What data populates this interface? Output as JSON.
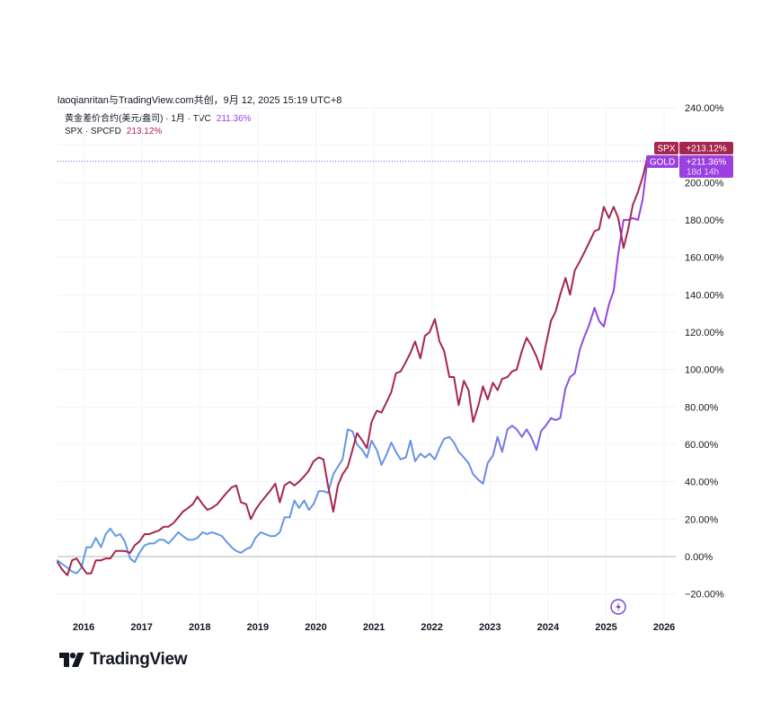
{
  "attribution": "laoqianritan与TradingView.com共创，9月 12, 2025 15:19 UTC+8",
  "legend": [
    {
      "name": "黄金差价合约(美元/盎司) · 1月 · TVC",
      "value": "211.36%",
      "color": "#9c3fe0"
    },
    {
      "name": "SPX · SPCFD",
      "value": "213.12%",
      "color": "#b5195c"
    }
  ],
  "badges": {
    "spx": {
      "label": "SPX",
      "value": "+213.12%",
      "color": "#a5274f"
    },
    "gold": {
      "label": "GOLD",
      "value": "+211.36%",
      "countdown": "18d 14h",
      "color": "#9c3fe0"
    }
  },
  "brand": "TradingView",
  "chart_data": {
    "type": "line",
    "title": "",
    "xlabel": "",
    "ylabel": "",
    "y_unit": "%",
    "ylim": [
      -27,
      240
    ],
    "xlim": [
      2015.55,
      2026.2
    ],
    "y_ticks": [
      240,
      200,
      180,
      160,
      140,
      120,
      100,
      80,
      60,
      40,
      20,
      0,
      -20
    ],
    "y_tick_labels": [
      "240.00%",
      "200.00%",
      "180.00%",
      "160.00%",
      "140.00%",
      "120.00%",
      "100.00%",
      "80.00%",
      "60.00%",
      "40.00%",
      "20.00%",
      "0.00%",
      "−20.00%"
    ],
    "x_ticks": [
      2016,
      2017,
      2018,
      2019,
      2020,
      2021,
      2022,
      2023,
      2024,
      2025,
      2026
    ],
    "x_tick_labels": [
      "2016",
      "2017",
      "2018",
      "2019",
      "2020",
      "2021",
      "2022",
      "2023",
      "2024",
      "2025",
      "2026"
    ],
    "reference_line": 211.36,
    "series": [
      {
        "name": "GOLD",
        "color_start": "#5b9fe8",
        "color_end": "#9c3fe0",
        "points": [
          [
            2015.55,
            -2
          ],
          [
            2015.63,
            -4
          ],
          [
            2015.72,
            -6
          ],
          [
            2015.8,
            -8
          ],
          [
            2015.88,
            -9
          ],
          [
            2015.96,
            -6
          ],
          [
            2016.05,
            5
          ],
          [
            2016.13,
            5
          ],
          [
            2016.21,
            10
          ],
          [
            2016.3,
            5
          ],
          [
            2016.38,
            12
          ],
          [
            2016.46,
            15
          ],
          [
            2016.55,
            11
          ],
          [
            2016.63,
            12
          ],
          [
            2016.71,
            8
          ],
          [
            2016.8,
            -1
          ],
          [
            2016.88,
            -3
          ],
          [
            2016.96,
            2
          ],
          [
            2017.05,
            6
          ],
          [
            2017.13,
            7
          ],
          [
            2017.21,
            7
          ],
          [
            2017.3,
            9
          ],
          [
            2017.38,
            9
          ],
          [
            2017.46,
            7
          ],
          [
            2017.55,
            10
          ],
          [
            2017.63,
            13
          ],
          [
            2017.71,
            11
          ],
          [
            2017.8,
            9
          ],
          [
            2017.88,
            9
          ],
          [
            2017.96,
            10
          ],
          [
            2018.05,
            13
          ],
          [
            2018.13,
            12
          ],
          [
            2018.21,
            13
          ],
          [
            2018.3,
            12
          ],
          [
            2018.38,
            11
          ],
          [
            2018.46,
            8
          ],
          [
            2018.55,
            5
          ],
          [
            2018.63,
            3
          ],
          [
            2018.71,
            2
          ],
          [
            2018.8,
            4
          ],
          [
            2018.88,
            5
          ],
          [
            2018.96,
            10
          ],
          [
            2019.05,
            13
          ],
          [
            2019.13,
            12
          ],
          [
            2019.21,
            11
          ],
          [
            2019.3,
            11
          ],
          [
            2019.38,
            13
          ],
          [
            2019.46,
            21
          ],
          [
            2019.55,
            21
          ],
          [
            2019.63,
            30
          ],
          [
            2019.71,
            26
          ],
          [
            2019.8,
            30
          ],
          [
            2019.88,
            25
          ],
          [
            2019.96,
            28
          ],
          [
            2020.05,
            35
          ],
          [
            2020.13,
            35
          ],
          [
            2020.21,
            34
          ],
          [
            2020.3,
            44
          ],
          [
            2020.38,
            48
          ],
          [
            2020.46,
            52
          ],
          [
            2020.55,
            68
          ],
          [
            2020.63,
            67
          ],
          [
            2020.71,
            60
          ],
          [
            2020.8,
            57
          ],
          [
            2020.88,
            53
          ],
          [
            2020.96,
            62
          ],
          [
            2021.05,
            57
          ],
          [
            2021.13,
            49
          ],
          [
            2021.21,
            54
          ],
          [
            2021.3,
            61
          ],
          [
            2021.38,
            56
          ],
          [
            2021.46,
            52
          ],
          [
            2021.55,
            53
          ],
          [
            2021.63,
            62
          ],
          [
            2021.71,
            51
          ],
          [
            2021.8,
            55
          ],
          [
            2021.88,
            53
          ],
          [
            2021.96,
            55
          ],
          [
            2022.05,
            52
          ],
          [
            2022.13,
            58
          ],
          [
            2022.21,
            63
          ],
          [
            2022.3,
            64
          ],
          [
            2022.38,
            61
          ],
          [
            2022.46,
            56
          ],
          [
            2022.55,
            53
          ],
          [
            2022.63,
            50
          ],
          [
            2022.71,
            44
          ],
          [
            2022.8,
            41
          ],
          [
            2022.88,
            39
          ],
          [
            2022.96,
            50
          ],
          [
            2023.05,
            54
          ],
          [
            2023.13,
            64
          ],
          [
            2023.21,
            56
          ],
          [
            2023.3,
            68
          ],
          [
            2023.38,
            70
          ],
          [
            2023.46,
            68
          ],
          [
            2023.55,
            64
          ],
          [
            2023.63,
            68
          ],
          [
            2023.71,
            64
          ],
          [
            2023.8,
            57
          ],
          [
            2023.88,
            67
          ],
          [
            2023.96,
            70
          ],
          [
            2024.05,
            74
          ],
          [
            2024.13,
            73
          ],
          [
            2024.21,
            74
          ],
          [
            2024.3,
            90
          ],
          [
            2024.38,
            96
          ],
          [
            2024.46,
            98
          ],
          [
            2024.55,
            111
          ],
          [
            2024.63,
            118
          ],
          [
            2024.71,
            124
          ],
          [
            2024.8,
            133
          ],
          [
            2024.88,
            126
          ],
          [
            2024.96,
            123
          ],
          [
            2025.05,
            135
          ],
          [
            2025.13,
            142
          ],
          [
            2025.21,
            162
          ],
          [
            2025.3,
            180
          ],
          [
            2025.38,
            180
          ],
          [
            2025.46,
            181
          ],
          [
            2025.55,
            180
          ],
          [
            2025.63,
            191
          ],
          [
            2025.71,
            211.36
          ]
        ]
      },
      {
        "name": "SPX",
        "color": "#a5274f",
        "points": [
          [
            2015.55,
            -3
          ],
          [
            2015.63,
            -7
          ],
          [
            2015.72,
            -10
          ],
          [
            2015.8,
            -2
          ],
          [
            2015.88,
            -1
          ],
          [
            2015.96,
            -5
          ],
          [
            2016.05,
            -9
          ],
          [
            2016.13,
            -9
          ],
          [
            2016.21,
            -2
          ],
          [
            2016.3,
            -2
          ],
          [
            2016.38,
            -1
          ],
          [
            2016.46,
            -1
          ],
          [
            2016.55,
            3
          ],
          [
            2016.63,
            3
          ],
          [
            2016.71,
            3
          ],
          [
            2016.8,
            2
          ],
          [
            2016.88,
            6
          ],
          [
            2016.96,
            8
          ],
          [
            2017.05,
            12
          ],
          [
            2017.13,
            12
          ],
          [
            2017.21,
            13
          ],
          [
            2017.3,
            14
          ],
          [
            2017.38,
            16
          ],
          [
            2017.46,
            16
          ],
          [
            2017.55,
            18
          ],
          [
            2017.63,
            21
          ],
          [
            2017.71,
            24
          ],
          [
            2017.8,
            26
          ],
          [
            2017.88,
            28
          ],
          [
            2017.96,
            32
          ],
          [
            2018.05,
            28
          ],
          [
            2018.13,
            25
          ],
          [
            2018.21,
            26
          ],
          [
            2018.3,
            28
          ],
          [
            2018.38,
            31
          ],
          [
            2018.46,
            34
          ],
          [
            2018.55,
            37
          ],
          [
            2018.63,
            38
          ],
          [
            2018.71,
            29
          ],
          [
            2018.8,
            28
          ],
          [
            2018.88,
            20
          ],
          [
            2018.96,
            25
          ],
          [
            2019.05,
            29
          ],
          [
            2019.13,
            32
          ],
          [
            2019.21,
            35
          ],
          [
            2019.3,
            39
          ],
          [
            2019.38,
            29
          ],
          [
            2019.46,
            38
          ],
          [
            2019.55,
            40
          ],
          [
            2019.63,
            38
          ],
          [
            2019.71,
            40
          ],
          [
            2019.8,
            43
          ],
          [
            2019.88,
            46
          ],
          [
            2019.96,
            51
          ],
          [
            2020.05,
            53
          ],
          [
            2020.13,
            52
          ],
          [
            2020.21,
            38
          ],
          [
            2020.3,
            24
          ],
          [
            2020.38,
            38
          ],
          [
            2020.46,
            44
          ],
          [
            2020.55,
            48
          ],
          [
            2020.63,
            57
          ],
          [
            2020.71,
            66
          ],
          [
            2020.8,
            62
          ],
          [
            2020.88,
            58
          ],
          [
            2020.96,
            72
          ],
          [
            2021.05,
            78
          ],
          [
            2021.13,
            77
          ],
          [
            2021.21,
            82
          ],
          [
            2021.3,
            88
          ],
          [
            2021.38,
            98
          ],
          [
            2021.46,
            99
          ],
          [
            2021.55,
            104
          ],
          [
            2021.63,
            109
          ],
          [
            2021.71,
            115
          ],
          [
            2021.8,
            106
          ],
          [
            2021.88,
            118
          ],
          [
            2021.96,
            120
          ],
          [
            2022.05,
            127
          ],
          [
            2022.13,
            115
          ],
          [
            2022.21,
            110
          ],
          [
            2022.3,
            96
          ],
          [
            2022.38,
            96
          ],
          [
            2022.46,
            81
          ],
          [
            2022.55,
            94
          ],
          [
            2022.63,
            89
          ],
          [
            2022.71,
            72
          ],
          [
            2022.8,
            81
          ],
          [
            2022.88,
            91
          ],
          [
            2022.96,
            84
          ],
          [
            2023.05,
            93
          ],
          [
            2023.13,
            89
          ],
          [
            2023.21,
            95
          ],
          [
            2023.3,
            96
          ],
          [
            2023.38,
            99
          ],
          [
            2023.46,
            100
          ],
          [
            2023.55,
            110
          ],
          [
            2023.63,
            117
          ],
          [
            2023.71,
            113
          ],
          [
            2023.8,
            107
          ],
          [
            2023.88,
            100
          ],
          [
            2023.96,
            113
          ],
          [
            2024.05,
            126
          ],
          [
            2024.13,
            131
          ],
          [
            2024.21,
            140
          ],
          [
            2024.3,
            149
          ],
          [
            2024.38,
            140
          ],
          [
            2024.46,
            153
          ],
          [
            2024.55,
            158
          ],
          [
            2024.63,
            163
          ],
          [
            2024.71,
            168
          ],
          [
            2024.8,
            174
          ],
          [
            2024.88,
            175
          ],
          [
            2024.96,
            187
          ],
          [
            2025.05,
            181
          ],
          [
            2025.13,
            187
          ],
          [
            2025.21,
            181
          ],
          [
            2025.3,
            165
          ],
          [
            2025.38,
            175
          ],
          [
            2025.46,
            188
          ],
          [
            2025.55,
            195
          ],
          [
            2025.63,
            203
          ],
          [
            2025.71,
            213.12
          ]
        ]
      }
    ]
  }
}
